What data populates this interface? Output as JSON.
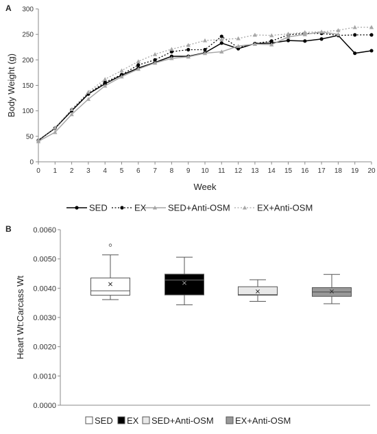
{
  "chart_data": [
    {
      "type": "line",
      "panel_label": "A",
      "xlabel": "Week",
      "ylabel": "Body Weight (g)",
      "x": [
        0,
        1,
        2,
        3,
        4,
        5,
        6,
        7,
        8,
        9,
        10,
        11,
        12,
        13,
        14,
        15,
        16,
        17,
        18,
        19,
        20
      ],
      "xlim": [
        0,
        20
      ],
      "ylim": [
        0,
        300
      ],
      "yticks": [
        0,
        50,
        100,
        150,
        200,
        250,
        300
      ],
      "grid": false,
      "legend_position": "bottom",
      "series": [
        {
          "name": "SED",
          "color": "#000000",
          "dash": "solid",
          "marker": "circle",
          "values": [
            42,
            66,
            100,
            133,
            153,
            170,
            184,
            195,
            207,
            207,
            214,
            233,
            222,
            232,
            233,
            238,
            237,
            241,
            248,
            213,
            218
          ]
        },
        {
          "name": "EX",
          "color": "#000000",
          "dash": "dotted",
          "marker": "circle",
          "values": [
            42,
            66,
            102,
            134,
            156,
            171,
            190,
            200,
            216,
            220,
            220,
            246,
            224,
            232,
            237,
            249,
            252,
            252,
            248,
            249,
            249
          ]
        },
        {
          "name": "SED+Anti-OSM",
          "color": "#a6a6a6",
          "dash": "solid",
          "marker": "triangle",
          "values": [
            40,
            58,
            93,
            123,
            149,
            167,
            182,
            194,
            203,
            206,
            213,
            216,
            227,
            231,
            230,
            245,
            250,
            255,
            250,
            null,
            null
          ]
        },
        {
          "name": "EX+Anti-OSM",
          "color": "#a6a6a6",
          "dash": "dotted",
          "marker": "triangle",
          "values": [
            43,
            67,
            103,
            137,
            162,
            179,
            197,
            211,
            221,
            229,
            238,
            240,
            242,
            249,
            248,
            251,
            254,
            255,
            258,
            264,
            264
          ]
        }
      ]
    },
    {
      "type": "box",
      "panel_label": "B",
      "ylabel": "Heart Wt:Carcass Wt",
      "ylim": [
        0,
        0.006
      ],
      "yticks": [
        "0.0000",
        "0.0010",
        "0.0020",
        "0.0030",
        "0.0040",
        "0.0050",
        "0.0060"
      ],
      "ytick_values": [
        0,
        0.001,
        0.002,
        0.003,
        0.004,
        0.005,
        0.006
      ],
      "legend_position": "bottom",
      "groups": [
        {
          "name": "SED",
          "fill": "#ffffff",
          "median_color": "#555555",
          "min": 0.00361,
          "q1": 0.00376,
          "median": 0.00391,
          "q3": 0.00435,
          "max": 0.00514,
          "mean": 0.00414,
          "outliers": [
            0.00547
          ]
        },
        {
          "name": "EX",
          "fill": "#000000",
          "median_color": "#777777",
          "min": 0.00343,
          "q1": 0.00377,
          "median": 0.00428,
          "q3": 0.00448,
          "max": 0.00506,
          "mean": 0.00418,
          "outliers": []
        },
        {
          "name": "SED+Anti-OSM",
          "fill": "#e8e8e8",
          "median_color": "#555555",
          "min": 0.00355,
          "q1": 0.00376,
          "median": 0.00378,
          "q3": 0.00405,
          "max": 0.00429,
          "mean": 0.00389,
          "outliers": []
        },
        {
          "name": "EX+Anti-OSM",
          "fill": "#999999",
          "median_color": "#444444",
          "min": 0.00347,
          "q1": 0.00372,
          "median": 0.00387,
          "q3": 0.00402,
          "max": 0.00447,
          "mean": 0.00389,
          "outliers": []
        }
      ]
    }
  ]
}
